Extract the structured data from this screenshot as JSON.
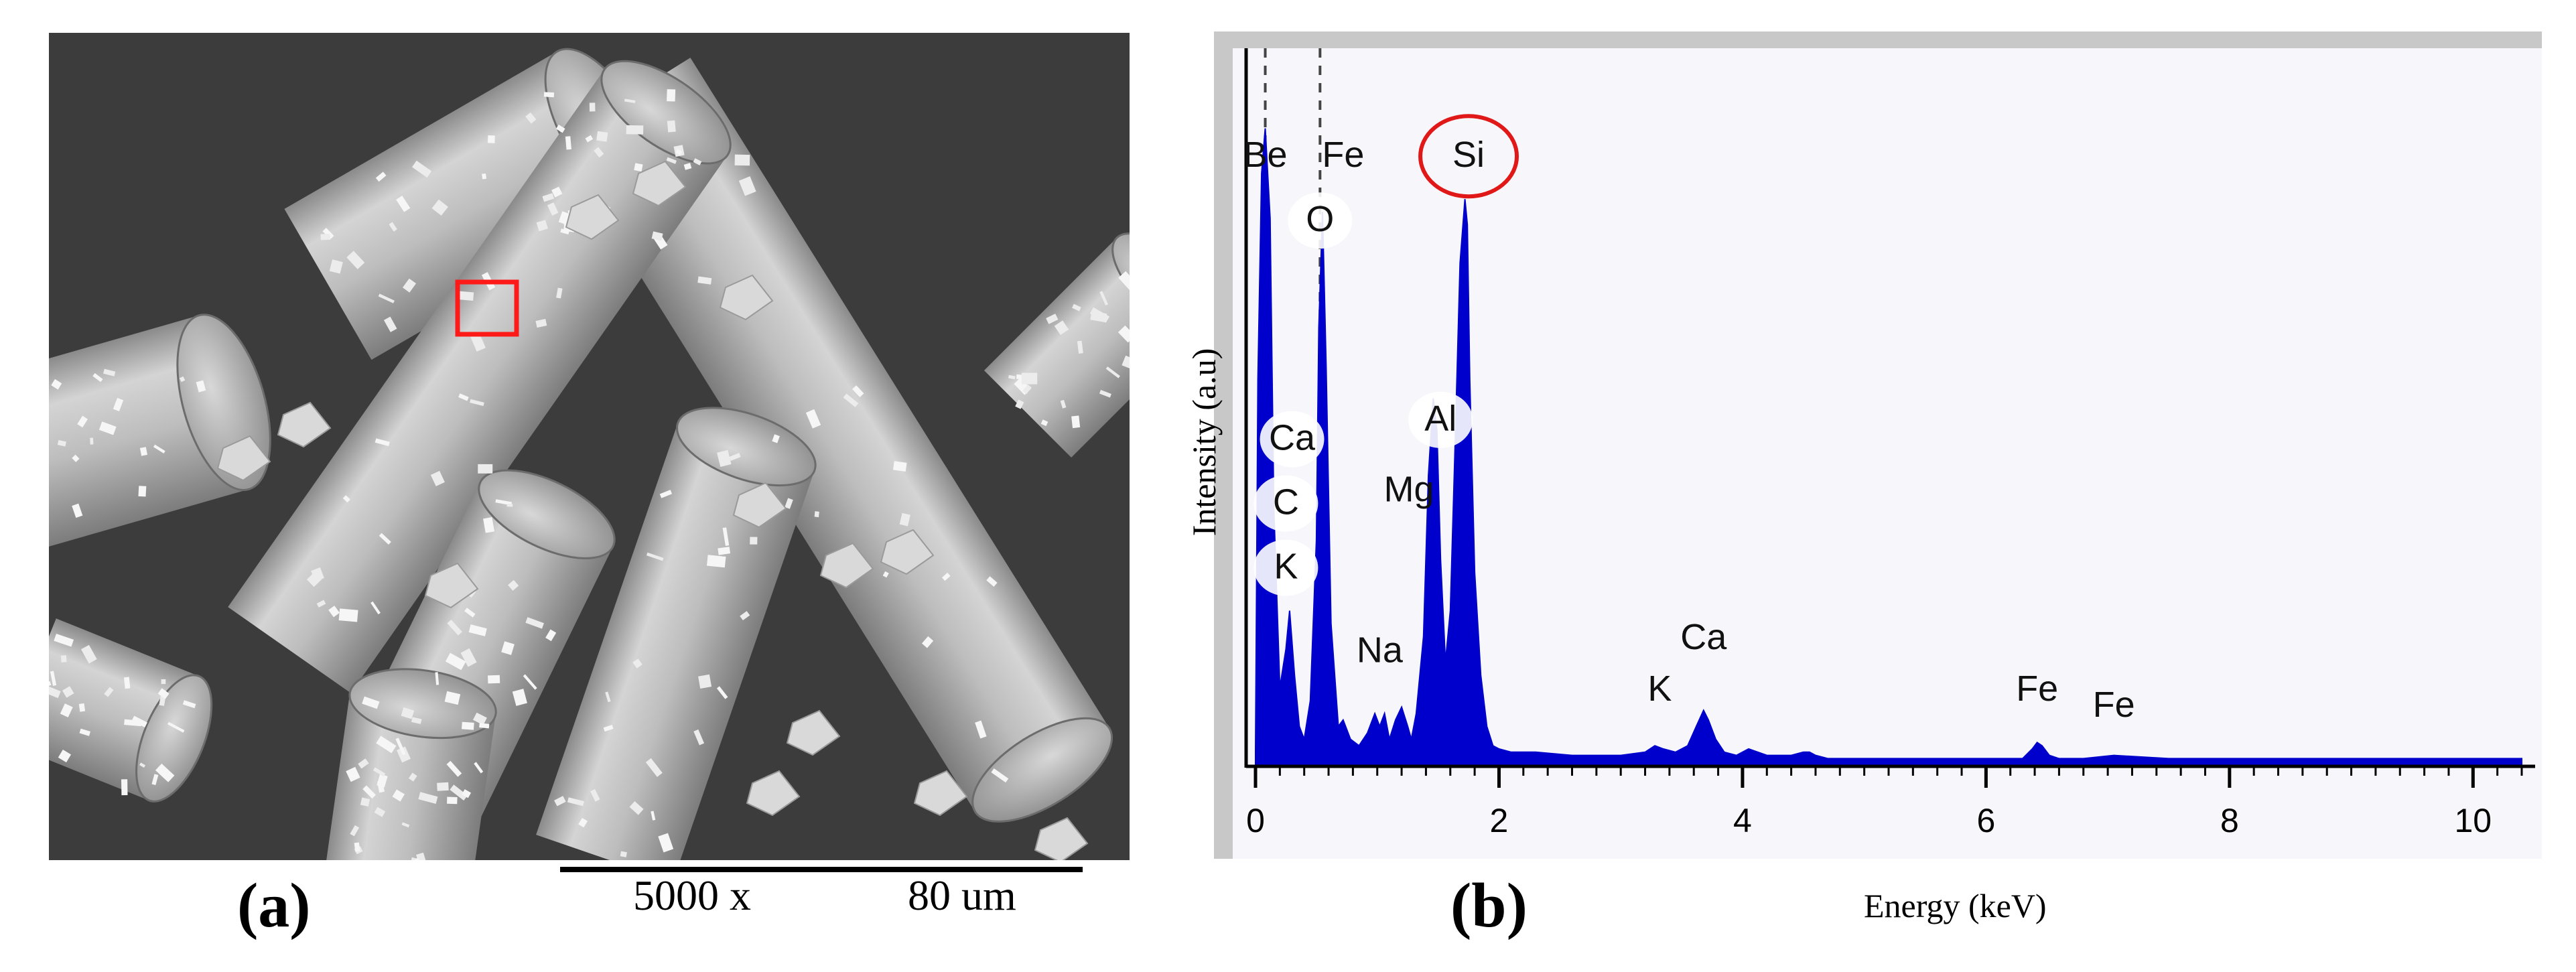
{
  "panel_a": {
    "label": "(a)",
    "magnification": "5000 x",
    "scale": "80 um",
    "highlight_color": "#ff1a1a"
  },
  "panel_b": {
    "label": "(b)",
    "circle_color": "#e01818",
    "spectrum_color": "#0000cc"
  },
  "chart_data": {
    "type": "area",
    "xlabel": "Energy (keV)",
    "ylabel": "Intensity (a.u)",
    "xlim": [
      0,
      10.4
    ],
    "ylim": [
      0,
      100
    ],
    "x_ticks": [
      "0",
      "2",
      "4",
      "6",
      "8",
      "10"
    ],
    "grid": false,
    "series": [
      {
        "x": [
          0,
          0.02,
          0.05,
          0.08,
          0.12,
          0.15,
          0.2,
          0.25,
          0.28,
          0.32,
          0.36,
          0.4,
          0.45,
          0.5,
          0.52,
          0.55,
          0.58,
          0.62,
          0.68,
          0.72,
          0.78,
          0.85,
          0.92,
          0.98,
          1.02,
          1.06,
          1.1,
          1.15,
          1.2,
          1.25,
          1.28,
          1.32,
          1.38,
          1.42,
          1.46,
          1.49,
          1.52,
          1.56,
          1.6,
          1.64,
          1.68,
          1.72,
          1.74,
          1.76,
          1.8,
          1.85,
          1.9,
          1.95,
          2.0,
          2.1,
          2.3,
          2.6,
          3.0,
          3.2,
          3.28,
          3.35,
          3.45,
          3.55,
          3.62,
          3.68,
          3.72,
          3.78,
          3.85,
          3.95,
          4.05,
          4.2,
          4.4,
          4.5,
          4.55,
          4.6,
          4.7,
          5.0,
          5.5,
          6.0,
          6.3,
          6.38,
          6.42,
          6.46,
          6.52,
          6.6,
          6.8,
          7.05,
          7.5,
          8.0,
          9.0,
          10.0,
          10.4
        ],
        "y": [
          2,
          60,
          92,
          99,
          85,
          40,
          12,
          18,
          24,
          14,
          6,
          4,
          10,
          35,
          68,
          86,
          62,
          22,
          6,
          7,
          4,
          3,
          5,
          8,
          6,
          8,
          4,
          7,
          9,
          6,
          4,
          8,
          20,
          45,
          57,
          52,
          32,
          16,
          24,
          50,
          78,
          88,
          84,
          60,
          30,
          14,
          6,
          3,
          2.5,
          2,
          2,
          1.5,
          1.5,
          2,
          3,
          2.5,
          2,
          3,
          6,
          8.5,
          7,
          4,
          2,
          1.5,
          2.5,
          1.5,
          1.5,
          2,
          2,
          1.5,
          1,
          1,
          1,
          1,
          1,
          2.5,
          3.5,
          3,
          1.5,
          1,
          1,
          1.5,
          1,
          1,
          1,
          1,
          1
        ]
      }
    ],
    "peak_labels": [
      {
        "text": "Be",
        "x": 0.08,
        "y": 93,
        "circled": false,
        "bubble": false
      },
      {
        "text": "Fe",
        "x": 0.72,
        "y": 93,
        "circled": false,
        "bubble": false
      },
      {
        "text": "Si",
        "x": 1.75,
        "y": 93,
        "circled": true,
        "bubble": false
      },
      {
        "text": "O",
        "x": 0.53,
        "y": 83,
        "circled": false,
        "bubble": true
      },
      {
        "text": "Al",
        "x": 1.52,
        "y": 52,
        "circled": false,
        "bubble": true
      },
      {
        "text": "Ca",
        "x": 0.3,
        "y": 49,
        "circled": false,
        "bubble": true
      },
      {
        "text": "Mg",
        "x": 1.26,
        "y": 41,
        "circled": false,
        "bubble": false
      },
      {
        "text": "C",
        "x": 0.25,
        "y": 39,
        "circled": false,
        "bubble": true
      },
      {
        "text": "K",
        "x": 0.25,
        "y": 29,
        "circled": false,
        "bubble": true
      },
      {
        "text": "Na",
        "x": 1.02,
        "y": 16,
        "circled": false,
        "bubble": false
      },
      {
        "text": "Ca",
        "x": 3.68,
        "y": 18,
        "circled": false,
        "bubble": false
      },
      {
        "text": "K",
        "x": 3.32,
        "y": 10,
        "circled": false,
        "bubble": false
      },
      {
        "text": "Fe",
        "x": 6.42,
        "y": 10,
        "circled": false,
        "bubble": false
      },
      {
        "text": "Fe",
        "x": 7.05,
        "y": 7.5,
        "circled": false,
        "bubble": false
      }
    ]
  }
}
